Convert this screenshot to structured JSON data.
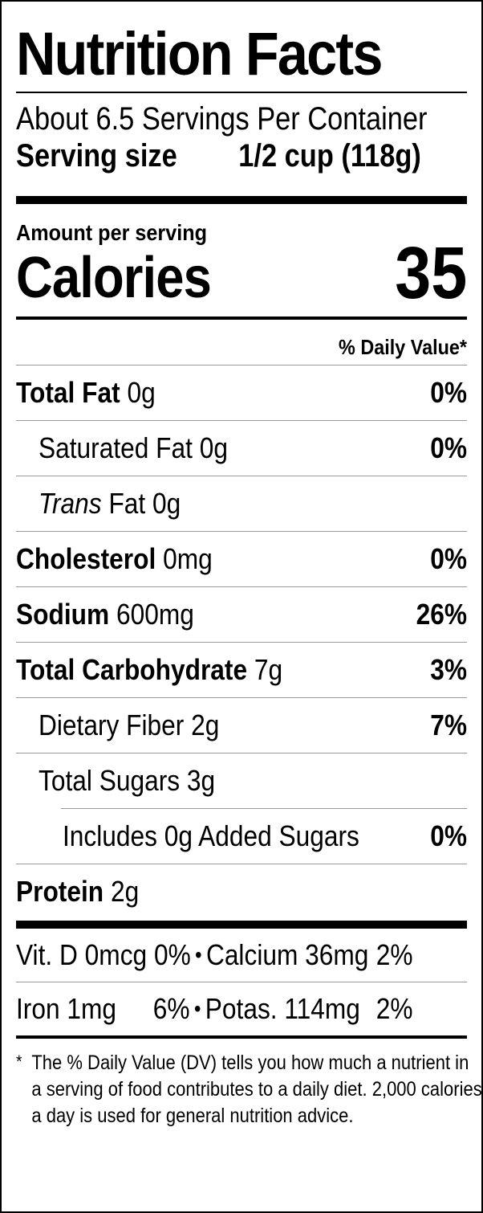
{
  "title": "Nutrition Facts",
  "servings_per_container": "About 6.5 Servings Per Container",
  "serving_size": {
    "label": "Serving size",
    "value": "1/2 cup (118g)"
  },
  "amount_per_serving": "Amount per serving",
  "calories": {
    "label": "Calories",
    "value": "35"
  },
  "daily_value_header": "% Daily Value*",
  "nutrients": [
    {
      "name": "Total Fat",
      "amount": "0g",
      "dv": "0%"
    },
    {
      "name": "Saturated Fat",
      "amount": "0g",
      "dv": "0%"
    },
    {
      "name_italic": "Trans",
      "name": "Fat",
      "amount": "0g",
      "dv": ""
    },
    {
      "name": "Cholesterol",
      "amount": "0mg",
      "dv": "0%"
    },
    {
      "name": "Sodium",
      "amount": "600mg",
      "dv": "26%"
    },
    {
      "name": "Total Carbohydrate",
      "amount": "7g",
      "dv": "3%"
    },
    {
      "name": "Dietary Fiber",
      "amount": "2g",
      "dv": "7%"
    },
    {
      "name": "Total Sugars",
      "amount": "3g",
      "dv": ""
    },
    {
      "name": "Includes 0g Added Sugars",
      "amount": "",
      "dv": "0%"
    },
    {
      "name": "Protein",
      "amount": "2g",
      "dv": ""
    }
  ],
  "vitamins": [
    {
      "left": "Vit. D 0mcg 0%",
      "right_name": "Calcium 36mg",
      "right_dv": "2%"
    },
    {
      "left_name": "Iron 1mg",
      "left_dv": "6%",
      "right_name": "Potas. 114mg",
      "right_dv": "2%"
    }
  ],
  "bullet": "•",
  "footnote_star": "*",
  "footnote": "The % Daily Value (DV) tells you how much a nutrient in a serving of food contributes to a daily diet. 2,000 calories a day is used for general nutrition advice."
}
